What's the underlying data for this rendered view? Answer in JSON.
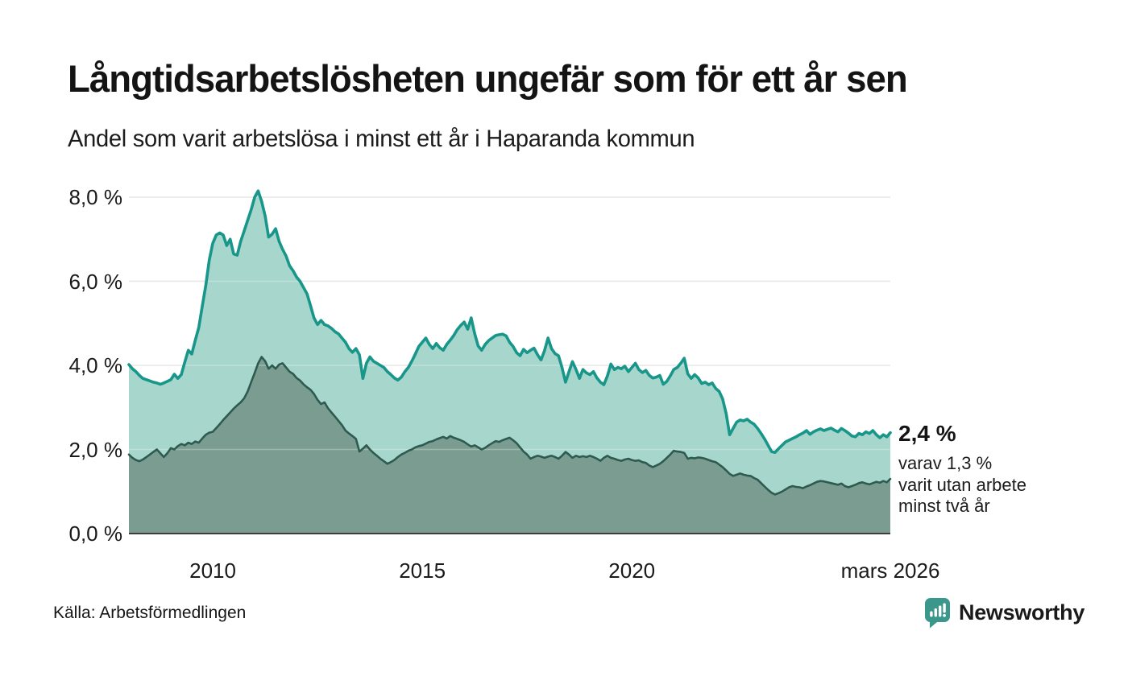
{
  "header": {
    "title": "Långtidsarbetslösheten ungefär som för ett år sen",
    "subtitle": "Andel som varit arbetslösa i minst ett år i Haparanda kommun"
  },
  "annotation": {
    "headline": "2,4 %",
    "line1": "varav 1,3 %",
    "line2": "varit utan arbete",
    "line3": "minst två år"
  },
  "footer": {
    "source": "Källa: Arbetsförmedlingen",
    "brand": "Newsworthy"
  },
  "colors": {
    "total_line": "#179689",
    "total_fill": "#a7d6cd",
    "two_year_line": "#2e5b50",
    "two_year_fill": "#7b9d91",
    "gridline": "#e0e0e0",
    "gridline_over_fill": "rgba(255,255,255,0.28)",
    "axis": "#3c3c3c",
    "brand_teal": "#3b968b",
    "text": "#1a1a1a"
  },
  "chart_data": {
    "type": "area",
    "title": "Långtidsarbetslösheten ungefär som för ett år sen",
    "subtitle": "Andel som varit arbetslösa i minst ett år i Haparanda kommun",
    "unit": "%",
    "grid": true,
    "x_domain": [
      2008.0,
      2026.1667
    ],
    "x_start_month": "2008-01",
    "x_end_month": "2026-03",
    "months_per_point": 1,
    "x_ticks": [
      {
        "pos": 2010.0,
        "label": "2010"
      },
      {
        "pos": 2015.0,
        "label": "2015"
      },
      {
        "pos": 2020.0,
        "label": "2020"
      },
      {
        "pos": 2026.1667,
        "label": "mars 2026"
      }
    ],
    "y_ticks": [
      {
        "value": 0,
        "label": "0,0 %"
      },
      {
        "value": 2,
        "label": "2,0 %"
      },
      {
        "value": 4,
        "label": "4,0 %"
      },
      {
        "value": 6,
        "label": "6,0 %"
      },
      {
        "value": 8,
        "label": "8,0 %"
      }
    ],
    "ylim": [
      0,
      8.5
    ],
    "legend": "none",
    "end_labels": {
      "total": "2,4 %",
      "two_year": "1,3 %"
    },
    "series": [
      {
        "name": "arbetslösa minst ett år",
        "line_color": "#179689",
        "fill_color": "#a7d6cd",
        "values": [
          4.02,
          3.92,
          3.85,
          3.76,
          3.69,
          3.66,
          3.63,
          3.6,
          3.58,
          3.55,
          3.58,
          3.62,
          3.66,
          3.79,
          3.69,
          3.78,
          4.08,
          4.36,
          4.27,
          4.6,
          4.9,
          5.4,
          5.9,
          6.5,
          6.9,
          7.1,
          7.15,
          7.1,
          6.85,
          7.0,
          6.65,
          6.62,
          6.95,
          7.2,
          7.45,
          7.7,
          8.0,
          8.15,
          7.9,
          7.55,
          7.05,
          7.12,
          7.25,
          6.95,
          6.76,
          6.6,
          6.37,
          6.25,
          6.1,
          6.0,
          5.85,
          5.7,
          5.42,
          5.13,
          4.97,
          5.07,
          4.97,
          4.94,
          4.88,
          4.8,
          4.75,
          4.65,
          4.55,
          4.4,
          4.31,
          4.4,
          4.25,
          3.69,
          4.05,
          4.2,
          4.1,
          4.05,
          4.0,
          3.95,
          3.85,
          3.78,
          3.7,
          3.65,
          3.72,
          3.85,
          3.95,
          4.1,
          4.27,
          4.45,
          4.55,
          4.65,
          4.5,
          4.4,
          4.52,
          4.42,
          4.36,
          4.5,
          4.6,
          4.71,
          4.85,
          4.95,
          5.03,
          4.86,
          5.13,
          4.75,
          4.46,
          4.36,
          4.5,
          4.59,
          4.65,
          4.71,
          4.73,
          4.74,
          4.7,
          4.55,
          4.45,
          4.3,
          4.23,
          4.38,
          4.3,
          4.36,
          4.41,
          4.25,
          4.13,
          4.35,
          4.65,
          4.4,
          4.28,
          4.23,
          3.95,
          3.6,
          3.85,
          4.09,
          3.9,
          3.69,
          3.9,
          3.82,
          3.78,
          3.85,
          3.7,
          3.6,
          3.54,
          3.75,
          4.03,
          3.9,
          3.95,
          3.92,
          3.98,
          3.85,
          3.95,
          4.05,
          3.9,
          3.83,
          3.88,
          3.76,
          3.7,
          3.72,
          3.76,
          3.55,
          3.62,
          3.75,
          3.9,
          3.95,
          4.05,
          4.17,
          3.8,
          3.69,
          3.78,
          3.7,
          3.57,
          3.6,
          3.54,
          3.58,
          3.45,
          3.38,
          3.2,
          2.85,
          2.35,
          2.5,
          2.65,
          2.7,
          2.68,
          2.72,
          2.65,
          2.6,
          2.5,
          2.38,
          2.25,
          2.1,
          1.95,
          1.93,
          2.02,
          2.1,
          2.18,
          2.22,
          2.26,
          2.3,
          2.35,
          2.39,
          2.45,
          2.36,
          2.42,
          2.46,
          2.49,
          2.45,
          2.48,
          2.51,
          2.46,
          2.42,
          2.5,
          2.45,
          2.39,
          2.32,
          2.3,
          2.38,
          2.35,
          2.42,
          2.38,
          2.45,
          2.35,
          2.28,
          2.35,
          2.3,
          2.4
        ]
      },
      {
        "name": "varit utan arbete minst två år",
        "line_color": "#2e5b50",
        "fill_color": "#7b9d91",
        "values": [
          1.88,
          1.8,
          1.75,
          1.72,
          1.76,
          1.82,
          1.88,
          1.94,
          2.0,
          1.91,
          1.82,
          1.91,
          2.03,
          2.0,
          2.08,
          2.13,
          2.1,
          2.16,
          2.13,
          2.19,
          2.16,
          2.26,
          2.35,
          2.4,
          2.42,
          2.51,
          2.6,
          2.7,
          2.79,
          2.88,
          2.97,
          3.05,
          3.12,
          3.22,
          3.38,
          3.6,
          3.82,
          4.05,
          4.2,
          4.1,
          3.92,
          4.0,
          3.92,
          4.02,
          4.05,
          3.95,
          3.85,
          3.8,
          3.7,
          3.64,
          3.55,
          3.48,
          3.42,
          3.32,
          3.18,
          3.08,
          3.12,
          2.98,
          2.88,
          2.78,
          2.68,
          2.58,
          2.45,
          2.38,
          2.32,
          2.25,
          1.95,
          2.02,
          2.1,
          2.0,
          1.92,
          1.85,
          1.78,
          1.72,
          1.66,
          1.7,
          1.75,
          1.82,
          1.88,
          1.92,
          1.97,
          2.0,
          2.05,
          2.08,
          2.1,
          2.14,
          2.18,
          2.2,
          2.24,
          2.27,
          2.3,
          2.26,
          2.32,
          2.28,
          2.25,
          2.22,
          2.18,
          2.12,
          2.07,
          2.1,
          2.05,
          2.0,
          2.04,
          2.1,
          2.15,
          2.2,
          2.18,
          2.22,
          2.25,
          2.28,
          2.22,
          2.15,
          2.05,
          1.95,
          1.88,
          1.78,
          1.82,
          1.85,
          1.83,
          1.8,
          1.83,
          1.85,
          1.82,
          1.78,
          1.85,
          1.94,
          1.88,
          1.8,
          1.85,
          1.82,
          1.84,
          1.82,
          1.85,
          1.82,
          1.78,
          1.73,
          1.8,
          1.85,
          1.8,
          1.78,
          1.75,
          1.73,
          1.76,
          1.78,
          1.75,
          1.73,
          1.74,
          1.7,
          1.68,
          1.62,
          1.58,
          1.62,
          1.66,
          1.72,
          1.8,
          1.88,
          1.97,
          1.95,
          1.94,
          1.92,
          1.78,
          1.8,
          1.79,
          1.81,
          1.8,
          1.78,
          1.75,
          1.72,
          1.7,
          1.64,
          1.58,
          1.5,
          1.42,
          1.37,
          1.4,
          1.43,
          1.4,
          1.38,
          1.37,
          1.32,
          1.28,
          1.2,
          1.12,
          1.04,
          0.97,
          0.93,
          0.96,
          1.0,
          1.05,
          1.1,
          1.13,
          1.11,
          1.1,
          1.08,
          1.12,
          1.15,
          1.19,
          1.23,
          1.25,
          1.24,
          1.22,
          1.2,
          1.18,
          1.16,
          1.19,
          1.13,
          1.1,
          1.13,
          1.16,
          1.2,
          1.22,
          1.19,
          1.17,
          1.2,
          1.23,
          1.21,
          1.25,
          1.22,
          1.3
        ]
      }
    ]
  }
}
